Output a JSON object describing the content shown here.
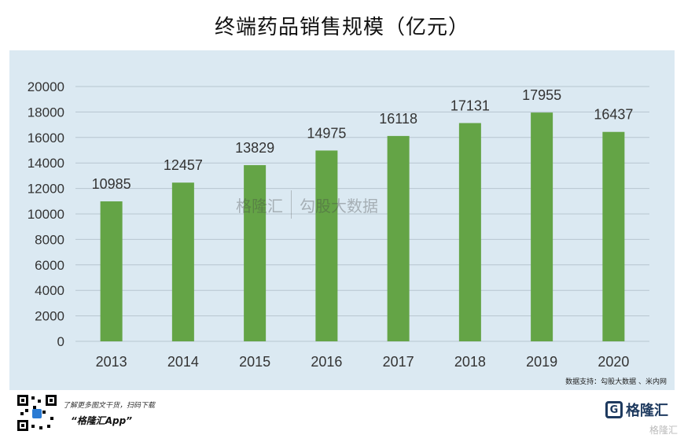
{
  "title": "终端药品销售规模（亿元）",
  "chart_data": {
    "type": "bar",
    "categories": [
      "2013",
      "2014",
      "2015",
      "2016",
      "2017",
      "2018",
      "2019",
      "2020"
    ],
    "values": [
      10985,
      12457,
      13829,
      14975,
      16118,
      17131,
      17955,
      16437
    ],
    "ylim": [
      0,
      20000
    ],
    "yticks": [
      0,
      2000,
      4000,
      6000,
      8000,
      10000,
      12000,
      14000,
      16000,
      18000,
      20000
    ],
    "grid": true,
    "bar_color": "#64a446"
  },
  "source": "数据支持：勾股大数据 、米内网",
  "promo": {
    "line1": "了解更多图文干货，扫码下载",
    "line2": "“格隆汇App”"
  },
  "brand": "格隆汇",
  "brand_mark": "G",
  "brand_secondary": "格隆汇",
  "watermark": {
    "left": "格隆汇",
    "right": "勾股大数据"
  }
}
